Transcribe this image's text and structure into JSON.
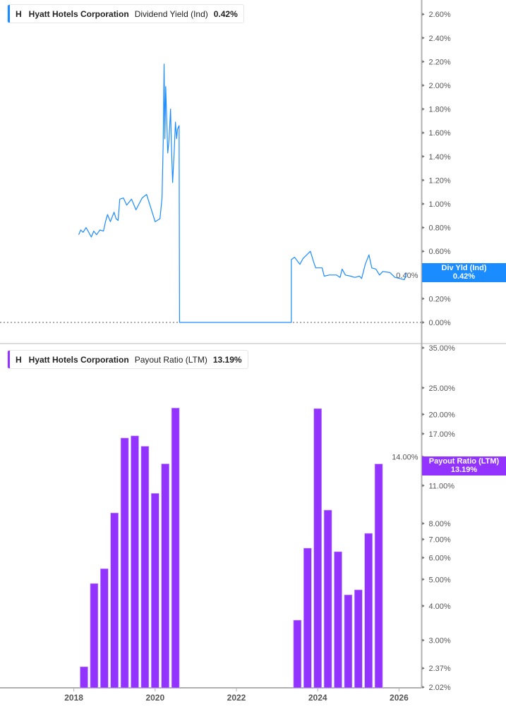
{
  "colors": {
    "yield": "#1a8cff",
    "payout": "#9333ff",
    "axis": "#b0b0b0"
  },
  "top_legend": {
    "ticker": "H",
    "company": "Hyatt Hotels Corporation",
    "metric": "Dividend Yield (Ind)",
    "value": "0.42%"
  },
  "bottom_legend": {
    "ticker": "H",
    "company": "Hyatt Hotels Corporation",
    "metric": "Payout Ratio (LTM)",
    "value": "13.19%"
  },
  "top_tag": {
    "label": "Div Yld (Ind)",
    "value": "0.42%"
  },
  "bottom_tag": {
    "label": "Payout Ratio (LTM)",
    "value": "13.19%"
  },
  "chart_data": [
    {
      "type": "line",
      "series": [
        {
          "name": "Dividend Yield (Ind)",
          "unit": "%",
          "x": [
            2018.12,
            2018.17,
            2018.23,
            2018.3,
            2018.35,
            2018.43,
            2018.49,
            2018.56,
            2018.64,
            2018.73,
            2018.78,
            2018.83,
            2018.9,
            2018.99,
            2019.04,
            2019.09,
            2019.13,
            2019.22,
            2019.3,
            2019.42,
            2019.53,
            2019.68,
            2019.79,
            2019.91,
            2020.0,
            2020.12,
            2020.17,
            2020.2,
            2020.22,
            2020.24,
            2020.26,
            2020.31,
            2020.34,
            2020.38,
            2020.4,
            2020.43,
            2020.47,
            2020.5,
            2020.53,
            2020.55,
            2020.59,
            2020.6,
            2023.35,
            2023.35,
            2023.43,
            2023.56,
            2023.64,
            2023.76,
            2023.82,
            2023.9,
            2023.95,
            2024.11,
            2024.16,
            2024.28,
            2024.46,
            2024.55,
            2024.6,
            2024.68,
            2024.81,
            2024.91,
            2025.03,
            2025.08,
            2025.17,
            2025.26,
            2025.33,
            2025.43,
            2025.52,
            2025.6,
            2025.78,
            2025.9,
            2026.02,
            2026.13,
            2026.19
          ],
          "y": [
            0.74,
            0.78,
            0.76,
            0.8,
            0.77,
            0.72,
            0.77,
            0.74,
            0.78,
            0.77,
            0.85,
            0.91,
            0.85,
            0.93,
            0.875,
            0.86,
            1.04,
            1.05,
            0.99,
            1.04,
            0.95,
            1.05,
            1.08,
            0.95,
            0.85,
            0.875,
            1.05,
            1.53,
            2.18,
            1.55,
            1.99,
            1.43,
            1.53,
            1.8,
            1.51,
            1.18,
            1.45,
            1.69,
            1.55,
            1.63,
            1.66,
            0.0,
            0.0,
            0.53,
            0.55,
            0.49,
            0.54,
            0.58,
            0.6,
            0.51,
            0.46,
            0.46,
            0.39,
            0.4,
            0.4,
            0.38,
            0.45,
            0.4,
            0.39,
            0.38,
            0.39,
            0.37,
            0.49,
            0.57,
            0.46,
            0.45,
            0.4,
            0.43,
            0.42,
            0.38,
            0.37,
            0.36,
            0.42
          ]
        }
      ],
      "y_ticks": [
        "2.60%",
        "2.40%",
        "2.20%",
        "2.00%",
        "1.80%",
        "1.60%",
        "1.40%",
        "1.20%",
        "1.00%",
        "0.80%",
        "0.60%",
        "0.40%",
        "0.20%",
        "0.00%"
      ],
      "y_tick_values": [
        2.6,
        2.4,
        2.2,
        2.0,
        1.8,
        1.6,
        1.4,
        1.2,
        1.0,
        0.8,
        0.6,
        0.4,
        0.2,
        0.0
      ],
      "ylim": [
        0,
        2.6
      ],
      "zero_line": "dotted"
    },
    {
      "type": "bar",
      "yscale": "log",
      "series": [
        {
          "name": "Payout Ratio (LTM)",
          "unit": "%",
          "x": [
            "2018-03",
            "2018-06",
            "2018-09",
            "2018-12",
            "2019-03",
            "2019-06",
            "2019-09",
            "2019-12",
            "2020-03",
            "2020-06",
            "2023-06",
            "2023-09",
            "2023-12",
            "2024-03",
            "2024-06",
            "2024-09",
            "2024-12",
            "2025-03",
            "2025-06"
          ],
          "values": [
            2.4,
            4.83,
            5.47,
            8.74,
            16.4,
            16.7,
            15.3,
            10.3,
            13.2,
            21.1,
            3.55,
            6.5,
            21.0,
            8.95,
            6.31,
            4.39,
            4.58,
            7.36,
            13.19
          ]
        }
      ],
      "y_ticks": [
        "35.00%",
        "25.00%",
        "20.00%",
        "17.00%",
        "14.00%",
        "11.00%",
        "8.00%",
        "7.00%",
        "6.00%",
        "5.00%",
        "4.00%",
        "3.00%",
        "2.37%",
        "2.02%"
      ],
      "y_tick_values": [
        35,
        25,
        20,
        17,
        14,
        11,
        8,
        7,
        6,
        5,
        4,
        3,
        2.37,
        2.02
      ],
      "ylim": [
        2.02,
        35
      ]
    }
  ],
  "x_axis": {
    "ticks": [
      "2018",
      "2020",
      "2022",
      "2024",
      "2026"
    ],
    "tick_values": [
      2018,
      2020,
      2022,
      2024,
      2026
    ]
  }
}
